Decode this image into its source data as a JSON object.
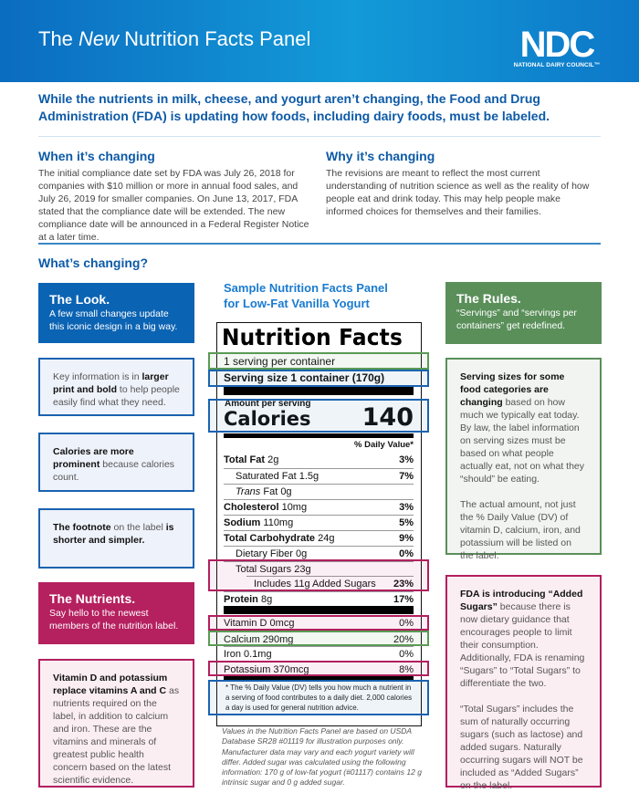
{
  "header": {
    "title_pre": "The ",
    "title_em": "New",
    "title_post": " Nutrition Facts Panel",
    "logo_letters": "NDC",
    "logo_name": "NATIONAL DAIRY COUNCIL™"
  },
  "intro": "While the nutrients in milk, cheese, and yogurt aren’t changing, the Food and Drug Administration (FDA) is updating how foods, including dairy foods, must be labeled.",
  "when": {
    "heading": "When it’s changing",
    "text": "The initial compliance date set by FDA was July 26, 2018 for companies with $10 million or more in annual food sales, and July 26, 2019 for smaller companies. On June 13, 2017, FDA stated that the compliance date will be extended.  The new compliance date will be announced in a Federal Register Notice at a later time."
  },
  "why": {
    "heading": "Why it’s changing",
    "text": "The revisions are meant to reflect the most current understanding of nutrition science as well as the reality of how people eat and drink today. This may help people make informed choices for themselves and their families."
  },
  "whats": {
    "heading": "What’s changing?"
  },
  "look": {
    "title": "The Look.",
    "text": "A few small changes update this iconic design in a big way."
  },
  "look_boxes": [
    [
      {
        "t": "Key information is in "
      },
      {
        "b": "larger print and bold"
      },
      {
        "t": " to help people easily find what they need."
      }
    ],
    [
      {
        "b": "Calories are more prominent"
      },
      {
        "t": " because calories count."
      }
    ],
    [
      {
        "b": "The footnote"
      },
      {
        "t": " on the label "
      },
      {
        "b": "is shorter and simpler."
      }
    ]
  ],
  "nutrients": {
    "title": "The Nutrients.",
    "text": "Say hello to the newest members of the nutrition label."
  },
  "nutrients_box": [
    {
      "b": "Vitamin D and potassium replace vitamins A and C"
    },
    {
      "t": " as nutrients required on the label, in addition to calcium and iron. These are the vitamins and minerals of greatest public health concern based on the latest scientific evidence."
    }
  ],
  "rules": {
    "title": "The Rules.",
    "text": "“Servings” and “servings per containers” get redefined."
  },
  "rules_box": [
    {
      "b": "Serving sizes for some food categories are changing"
    },
    {
      "t": " based on how much we typically eat today. By law, the label information on serving sizes must be based on what people actually eat, not on what they “should” be eating.\n\nThe actual amount, not just the % Daily Value (DV) of vitamin D, calcium, iron, and potassium will be listed on the label."
    }
  ],
  "sugars_box": [
    {
      "b": "FDA is introducing “Added Sugars”"
    },
    {
      "t": " because there is now dietary guidance that encourages people to limit their consumption. Additionally, FDA is renaming “Sugars” to “Total Sugars” to differentiate the two.\n\n“Total Sugars” includes the sum of naturally occurring sugars (such as lactose) and added sugars. Naturally occurring sugars will NOT be included as “Added Sugars” on the label."
    }
  ],
  "sample_title": "Sample Nutrition Facts Panel for Low-Fat Vanilla Yogurt",
  "label": {
    "title": "Nutrition Facts",
    "servings": "1 serving per container",
    "serving_size": "Serving size 1 container (170g)",
    "amount_per": "Amount per serving",
    "calories_label": "Calories",
    "calories": "140",
    "dv_header": "% Daily Value*",
    "rows": [
      {
        "name": "Total Fat",
        "amt": "2g",
        "dv": "3%",
        "bold": true,
        "indent": 0
      },
      {
        "name": "Saturated Fat",
        "amt": "1.5g",
        "dv": "7%",
        "bold": false,
        "indent": 1
      },
      {
        "name": "Trans",
        "amt": "Fat 0g",
        "dv": "",
        "bold": false,
        "indent": 1,
        "italic": true
      },
      {
        "name": "Cholesterol",
        "amt": "10mg",
        "dv": "3%",
        "bold": true,
        "indent": 0
      },
      {
        "name": "Sodium",
        "amt": "110mg",
        "dv": "5%",
        "bold": true,
        "indent": 0
      },
      {
        "name": "Total Carbohydrate",
        "amt": "24g",
        "dv": "9%",
        "bold": true,
        "indent": 0
      },
      {
        "name": "Dietary Fiber",
        "amt": "0g",
        "dv": "0%",
        "bold": false,
        "indent": 1
      },
      {
        "name": "Total Sugars",
        "amt": "23g",
        "dv": "",
        "bold": false,
        "indent": 1
      },
      {
        "name": "Includes 11g Added Sugars",
        "amt": "",
        "dv": "23%",
        "bold": false,
        "indent": 2
      },
      {
        "name": "Protein",
        "amt": "8g",
        "dv": "17%",
        "bold": true,
        "indent": 0
      }
    ],
    "micros": [
      {
        "name": "Vitamin D",
        "amt": "0mcg",
        "dv": "0%"
      },
      {
        "name": "Calcium",
        "amt": "290mg",
        "dv": "20%"
      },
      {
        "name": "Iron",
        "amt": "0.1mg",
        "dv": "0%"
      },
      {
        "name": "Potassium",
        "amt": "370mcg",
        "dv": "8%"
      }
    ],
    "footnote": "* The % Daily Value (DV) tells you how much a nutrient in a serving of food contributes to a daily diet. 2,000 calories a day is used for general nutrition advice."
  },
  "note": "Values in the Nutrition Facts Panel are based on USDA Database SR28 #01119 for illustration purposes only. Manufacturer data may vary and each yogurt variety will differ. Added sugar was calculated using the following information: 170 g of low-fat yogurt (#01117) contains 12 g intrinsic sugar and 0 g added sugar.",
  "colors": {
    "blue": "#0b63b3",
    "magenta": "#b5205f",
    "green": "#5a8f5a",
    "header_gradient_start": "#0b6cc0",
    "header_gradient_end": "#139ad8"
  }
}
